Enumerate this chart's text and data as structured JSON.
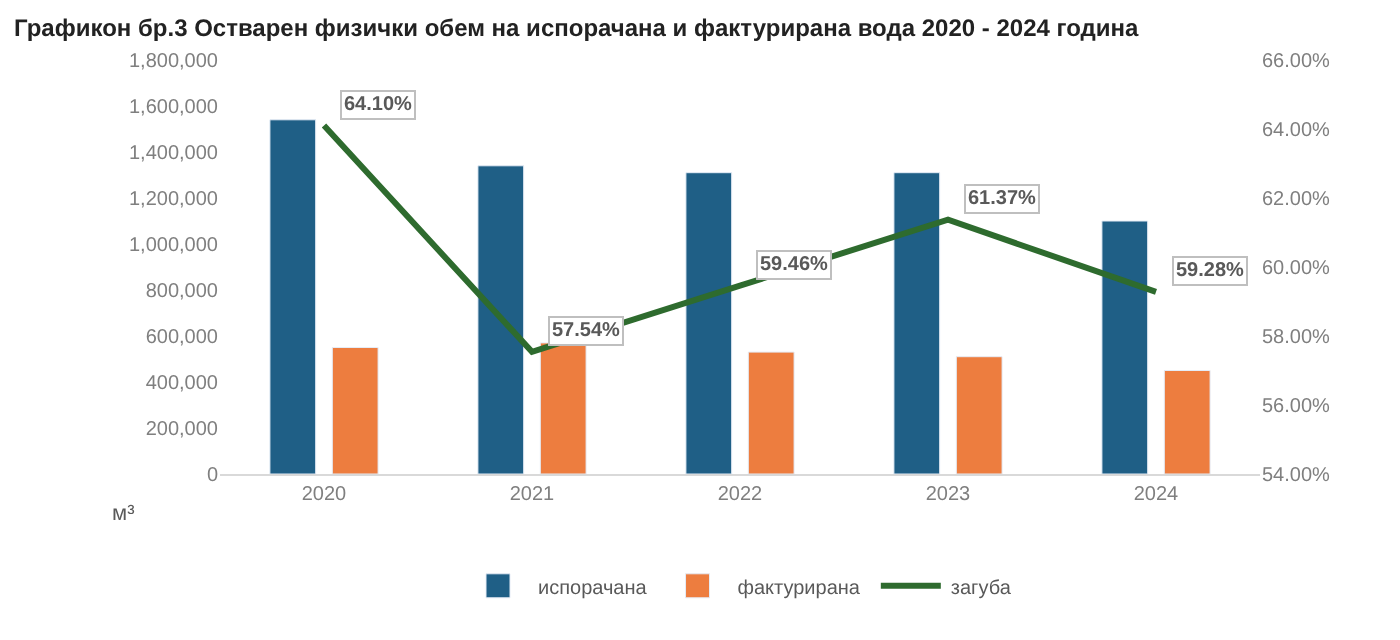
{
  "chart_data": {
    "type": "bar",
    "title": "Графикон бр.3 Остварен физички обем на испорачана и фактурирана вода 2020 - 2024 година",
    "ylabel": "м³",
    "categories": [
      "2020",
      "2021",
      "2022",
      "2023",
      "2024"
    ],
    "series": [
      {
        "name": "испорачана",
        "color": "#1f5f86",
        "values": [
          1540000,
          1340000,
          1310000,
          1310000,
          1100000
        ]
      },
      {
        "name": "фактурирана",
        "color": "#ed7d3f",
        "values": [
          550000,
          570000,
          530000,
          510000,
          450000
        ]
      },
      {
        "name": "загуба",
        "type": "line",
        "axis": "y2",
        "color": "#2e6b2e",
        "values": [
          64.1,
          57.54,
          59.46,
          61.37,
          59.28
        ],
        "value_labels": [
          "64.10%",
          "57.54%",
          "59.46%",
          "61.37%",
          "59.28%"
        ]
      }
    ],
    "ylim": [
      0,
      1800000
    ],
    "yticks": [
      {
        "value": 0,
        "label": "0"
      },
      {
        "value": 200000,
        "label": "200,000"
      },
      {
        "value": 400000,
        "label": "400,000"
      },
      {
        "value": 600000,
        "label": "600,000"
      },
      {
        "value": 800000,
        "label": "800,000"
      },
      {
        "value": 1000000,
        "label": "1,000,000"
      },
      {
        "value": 1200000,
        "label": "1,200,000"
      },
      {
        "value": 1400000,
        "label": "1,400,000"
      },
      {
        "value": 1600000,
        "label": "1,600,000"
      },
      {
        "value": 1800000,
        "label": "1,800,000"
      }
    ],
    "y2lim": [
      54,
      66
    ],
    "y2ticks": [
      {
        "value": 54,
        "label": "54.00%"
      },
      {
        "value": 56,
        "label": "56.00%"
      },
      {
        "value": 58,
        "label": "58.00%"
      },
      {
        "value": 60,
        "label": "60.00%"
      },
      {
        "value": 62,
        "label": "62.00%"
      },
      {
        "value": 64,
        "label": "64.00%"
      },
      {
        "value": 66,
        "label": "66.00%"
      }
    ],
    "legend": "bottom"
  }
}
